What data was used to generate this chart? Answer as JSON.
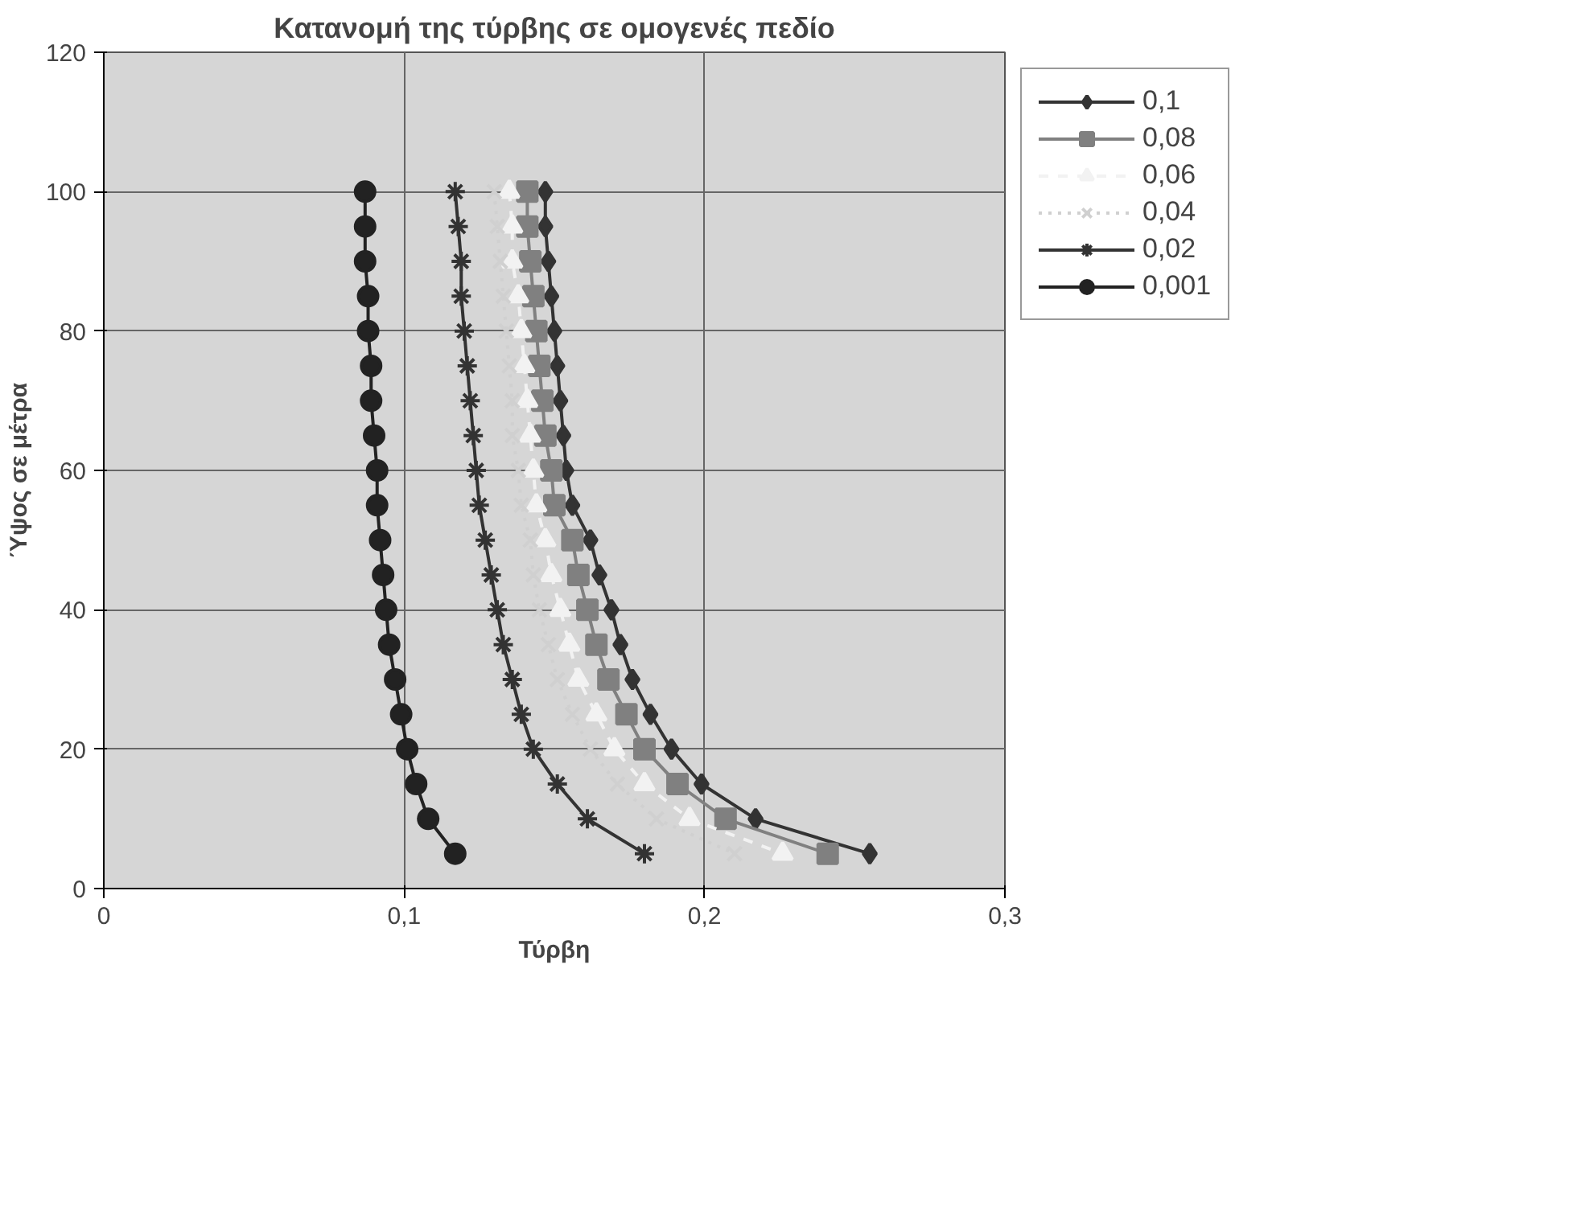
{
  "chart_data": {
    "type": "line",
    "title": "Κατανομή της τύρβης σε ομογενές πεδίο",
    "xlabel": "Τύρβη",
    "ylabel": "Ύψος σε μέτρα",
    "series": [
      {
        "name": "0,1",
        "color": "#333333",
        "marker": "diamond",
        "line_style": "solid",
        "x": [
          0.147,
          0.147,
          0.148,
          0.149,
          0.15,
          0.151,
          0.152,
          0.153,
          0.154,
          0.156,
          0.162,
          0.165,
          0.169,
          0.172,
          0.176,
          0.182,
          0.189,
          0.199,
          0.217,
          0.255
        ],
        "values": [
          100,
          95,
          90,
          85,
          80,
          75,
          70,
          65,
          60,
          55,
          50,
          45,
          40,
          35,
          30,
          25,
          20,
          15,
          10,
          5
        ]
      },
      {
        "name": "0,08",
        "color": "#808080",
        "marker": "square",
        "line_style": "solid",
        "x": [
          0.141,
          0.141,
          0.142,
          0.143,
          0.144,
          0.145,
          0.146,
          0.147,
          0.149,
          0.15,
          0.156,
          0.158,
          0.161,
          0.164,
          0.168,
          0.174,
          0.18,
          0.191,
          0.207,
          0.241
        ],
        "values": [
          100,
          95,
          90,
          85,
          80,
          75,
          70,
          65,
          60,
          55,
          50,
          45,
          40,
          35,
          30,
          25,
          20,
          15,
          10,
          5
        ]
      },
      {
        "name": "0,06",
        "color": "#f2f2f2",
        "marker": "triangle",
        "line_style": "dashed",
        "x": [
          0.135,
          0.136,
          0.136,
          0.138,
          0.139,
          0.14,
          0.141,
          0.142,
          0.143,
          0.144,
          0.147,
          0.149,
          0.152,
          0.155,
          0.158,
          0.164,
          0.17,
          0.18,
          0.195,
          0.226
        ],
        "values": [
          100,
          95,
          90,
          85,
          80,
          75,
          70,
          65,
          60,
          55,
          50,
          45,
          40,
          35,
          30,
          25,
          20,
          15,
          10,
          5
        ]
      },
      {
        "name": "0,04",
        "color": "#d0d0d0",
        "marker": "cross",
        "line_style": "dotted",
        "x": [
          0.13,
          0.131,
          0.132,
          0.133,
          0.134,
          0.135,
          0.136,
          0.136,
          0.138,
          0.139,
          0.142,
          0.143,
          0.145,
          0.148,
          0.151,
          0.156,
          0.162,
          0.171,
          0.184,
          0.21
        ],
        "values": [
          100,
          95,
          90,
          85,
          80,
          75,
          70,
          65,
          60,
          55,
          50,
          45,
          40,
          35,
          30,
          25,
          20,
          15,
          10,
          5
        ]
      },
      {
        "name": "0,02",
        "color": "#333333",
        "marker": "cross",
        "line_style": "solid",
        "x": [
          0.117,
          0.118,
          0.119,
          0.119,
          0.12,
          0.121,
          0.122,
          0.123,
          0.124,
          0.125,
          0.127,
          0.129,
          0.131,
          0.133,
          0.136,
          0.139,
          0.143,
          0.151,
          0.161,
          0.18
        ],
        "values": [
          100,
          95,
          90,
          85,
          80,
          75,
          70,
          65,
          60,
          55,
          50,
          45,
          40,
          35,
          30,
          25,
          20,
          15,
          10,
          5
        ]
      },
      {
        "name": "0,001",
        "color": "#222222",
        "marker": "circle",
        "line_style": "solid",
        "x": [
          0.087,
          0.087,
          0.087,
          0.088,
          0.088,
          0.089,
          0.089,
          0.09,
          0.091,
          0.091,
          0.092,
          0.093,
          0.094,
          0.095,
          0.097,
          0.099,
          0.101,
          0.104,
          0.108,
          0.117
        ],
        "values": [
          100,
          95,
          90,
          85,
          80,
          75,
          70,
          65,
          60,
          55,
          50,
          45,
          40,
          35,
          30,
          25,
          20,
          15,
          10,
          5
        ]
      }
    ],
    "xlim": [
      0,
      0.3
    ],
    "xticks": [
      0,
      {
        "value": 0.1,
        "label": "0,1"
      },
      {
        "value": 0.2,
        "label": "0,2"
      },
      {
        "value": 0.3,
        "label": "0,3"
      }
    ],
    "ylim": [
      0,
      120
    ],
    "yticks": [
      0,
      20,
      40,
      60,
      80,
      100,
      120
    ],
    "grid": true,
    "legend": "right"
  }
}
